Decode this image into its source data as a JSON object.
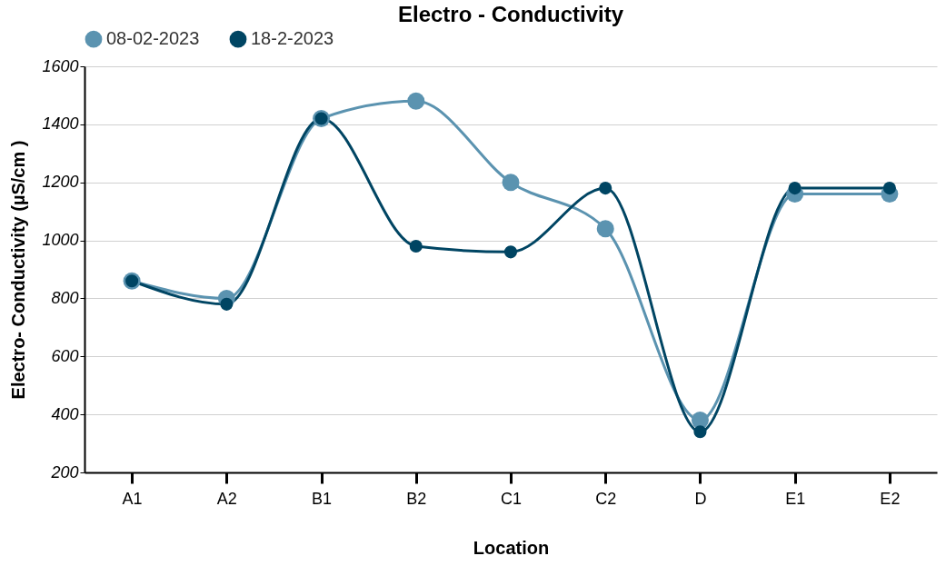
{
  "chart_data": {
    "type": "line",
    "title": "Electro - Conductivity",
    "xlabel": "Location",
    "ylabel": "Electro- Conductivity (µS/cm )",
    "categories": [
      "A1",
      "A2",
      "B1",
      "B2",
      "C1",
      "C2",
      "D",
      "E1",
      "E2"
    ],
    "series": [
      {
        "name": "08-02-2023",
        "color": "#5b93b0",
        "values": [
          860,
          800,
          1420,
          1480,
          1200,
          1040,
          380,
          1160,
          1160
        ]
      },
      {
        "name": "18-2-2023",
        "color": "#004563",
        "values": [
          860,
          780,
          1420,
          980,
          960,
          1180,
          340,
          1180,
          1180
        ]
      }
    ],
    "ylim": [
      200,
      1600
    ],
    "yticks": [
      200,
      400,
      600,
      800,
      1000,
      1200,
      1400,
      1600
    ],
    "grid": "y",
    "legend": "top",
    "marker": "circle",
    "line_style": "solid"
  }
}
